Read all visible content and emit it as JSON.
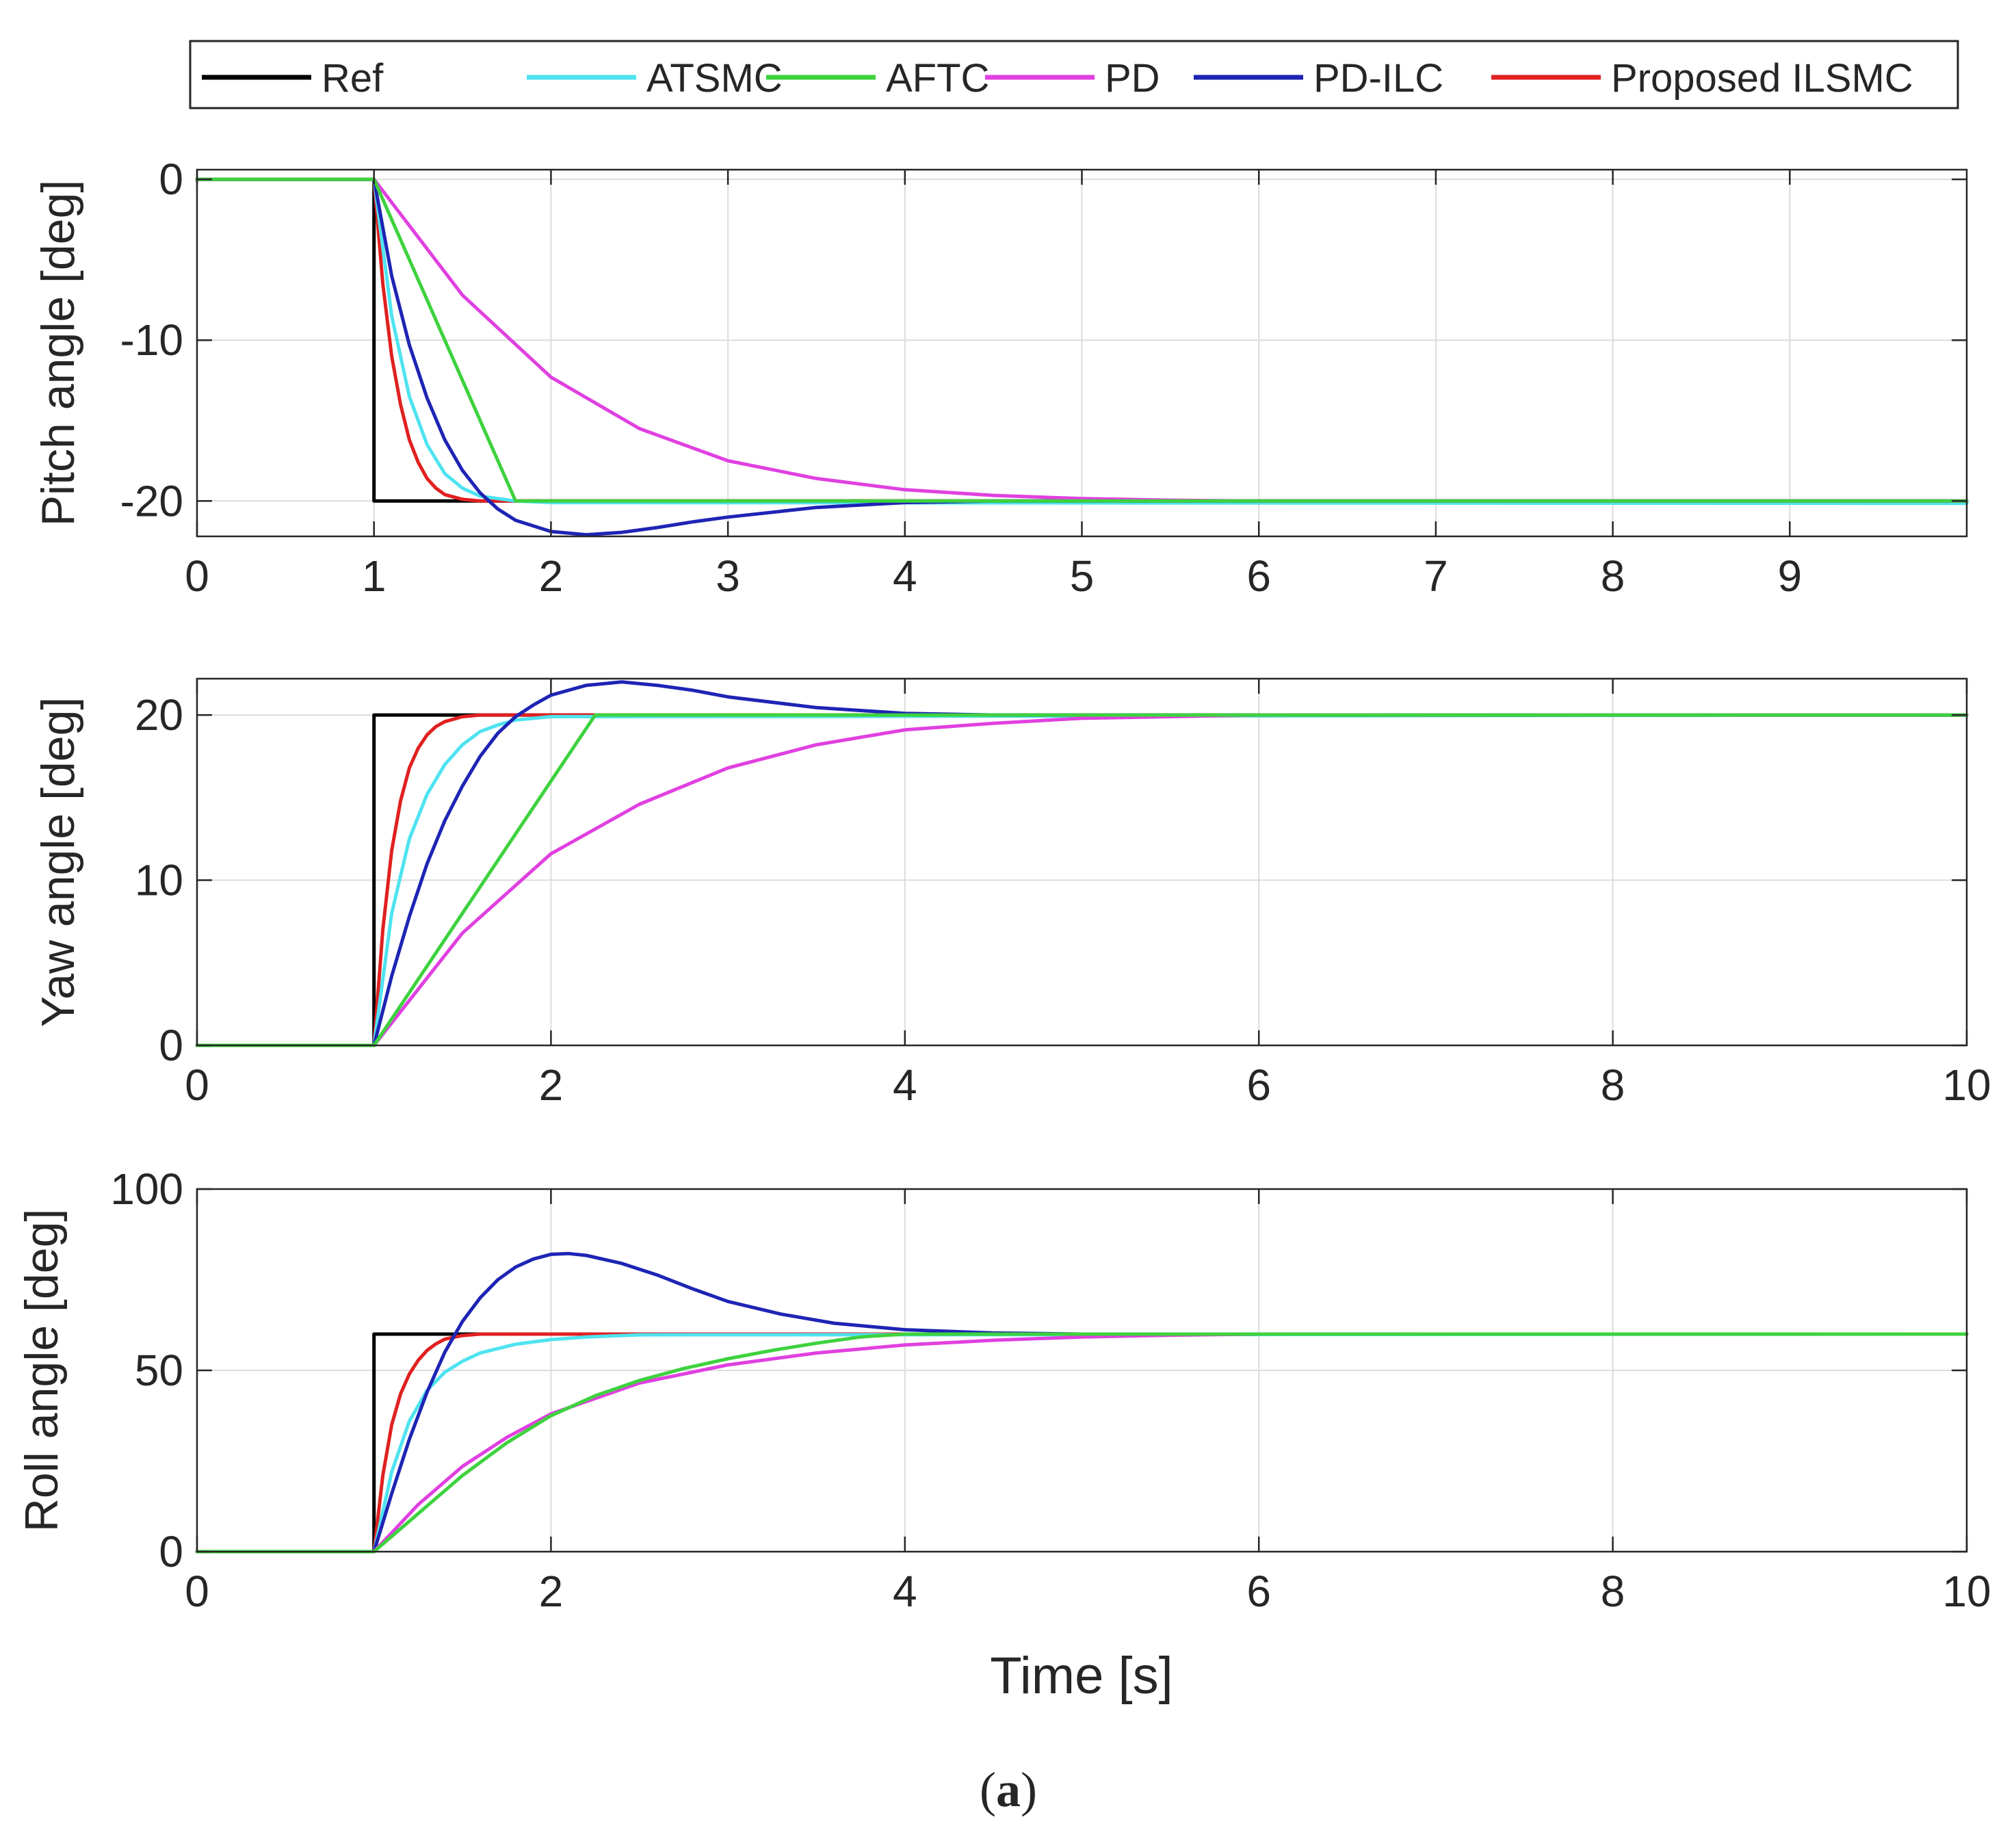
{
  "caption": {
    "open": "(",
    "letter": "a",
    "close": ")"
  },
  "legend": [
    {
      "label": "Ref",
      "color": "#000000"
    },
    {
      "label": "ATSMC",
      "color": "#4fe3f0"
    },
    {
      "label": "AFTC",
      "color": "#3ed23e"
    },
    {
      "label": "PD",
      "color": "#e040e0"
    },
    {
      "label": "PD-ILC",
      "color": "#1e24b4"
    },
    {
      "label": "Proposed ILSMC",
      "color": "#e02020"
    }
  ],
  "chart_data": [
    {
      "type": "line",
      "title": "",
      "xlabel": "",
      "ylabel": "Pitch angle [deg]",
      "xlim": [
        0,
        10
      ],
      "ylim": [
        -22.2,
        0.6
      ],
      "xticks": [
        0,
        1,
        2,
        3,
        4,
        5,
        6,
        7,
        8,
        9
      ],
      "xtick_labels": [
        "0",
        "1",
        "2",
        "3",
        "4",
        "5",
        "6",
        "7",
        "8",
        "9"
      ],
      "yticks": [
        0,
        -10,
        -20
      ],
      "ytick_labels": [
        "0",
        "-10",
        "-20"
      ],
      "grid": true,
      "series": [
        {
          "name": "Ref",
          "x": [
            0,
            1,
            1,
            10
          ],
          "y": [
            0,
            0,
            -20,
            -20
          ]
        },
        {
          "name": "ATSMC",
          "x": [
            0,
            1,
            1.1,
            1.2,
            1.3,
            1.4,
            1.5,
            1.6,
            1.8,
            2.0,
            10
          ],
          "y": [
            0,
            0,
            -8.5,
            -13.5,
            -16.5,
            -18.3,
            -19.2,
            -19.7,
            -20.0,
            -20.1,
            -20.15
          ]
        },
        {
          "name": "AFTC",
          "x": [
            0,
            1,
            1.8,
            10
          ],
          "y": [
            0,
            0,
            -20,
            -20
          ]
        },
        {
          "name": "PD",
          "x": [
            0,
            1,
            1.5,
            2.0,
            2.5,
            3.0,
            3.5,
            4.0,
            4.5,
            5.0,
            5.5,
            6.0,
            10
          ],
          "y": [
            0,
            0,
            -7.2,
            -12.3,
            -15.5,
            -17.5,
            -18.6,
            -19.3,
            -19.65,
            -19.85,
            -19.95,
            -20.0,
            -20.0
          ]
        },
        {
          "name": "PD-ILC",
          "x": [
            0,
            1,
            1.1,
            1.2,
            1.3,
            1.4,
            1.5,
            1.6,
            1.7,
            1.8,
            2.0,
            2.2,
            2.4,
            2.6,
            2.8,
            3.0,
            3.5,
            4.0,
            4.5,
            5.0,
            10
          ],
          "y": [
            0,
            0,
            -6.0,
            -10.3,
            -13.6,
            -16.2,
            -18.1,
            -19.5,
            -20.5,
            -21.2,
            -21.9,
            -22.1,
            -21.95,
            -21.65,
            -21.3,
            -21.0,
            -20.4,
            -20.1,
            -20.0,
            -20.0,
            -20.0
          ]
        },
        {
          "name": "Proposed ILSMC",
          "x": [
            0,
            1,
            1.05,
            1.1,
            1.15,
            1.2,
            1.25,
            1.3,
            1.35,
            1.4,
            1.5,
            1.6,
            10
          ],
          "y": [
            0,
            0,
            -6.5,
            -11.0,
            -14.0,
            -16.2,
            -17.6,
            -18.6,
            -19.2,
            -19.6,
            -19.9,
            -20.0,
            -20.0
          ]
        }
      ]
    },
    {
      "type": "line",
      "title": "",
      "xlabel": "",
      "ylabel": "Yaw angle [deg]",
      "xlim": [
        0,
        10
      ],
      "ylim": [
        0,
        22.2
      ],
      "xticks": [
        0,
        2,
        4,
        6,
        8,
        10
      ],
      "xtick_labels": [
        "0",
        "2",
        "4",
        "6",
        "8",
        "10"
      ],
      "yticks": [
        0,
        10,
        20
      ],
      "ytick_labels": [
        "0",
        "10",
        "20"
      ],
      "grid": true,
      "series": [
        {
          "name": "Ref",
          "x": [
            0,
            1,
            1,
            10
          ],
          "y": [
            0,
            0,
            20,
            20
          ]
        },
        {
          "name": "ATSMC",
          "x": [
            0,
            1,
            1.1,
            1.2,
            1.3,
            1.4,
            1.5,
            1.6,
            1.7,
            1.8,
            2.0,
            10
          ],
          "y": [
            0,
            0,
            8.0,
            12.5,
            15.2,
            17.0,
            18.2,
            19.0,
            19.4,
            19.7,
            19.9,
            20.0
          ]
        },
        {
          "name": "AFTC",
          "x": [
            0,
            1,
            2.25,
            10
          ],
          "y": [
            0,
            0,
            20,
            20
          ]
        },
        {
          "name": "PD",
          "x": [
            0,
            1,
            1.5,
            2.0,
            2.5,
            3.0,
            3.5,
            4.0,
            4.5,
            5.0,
            5.5,
            6.0,
            10
          ],
          "y": [
            0,
            0,
            6.8,
            11.6,
            14.6,
            16.8,
            18.2,
            19.1,
            19.5,
            19.8,
            19.9,
            20.0,
            20.0
          ]
        },
        {
          "name": "PD-ILC",
          "x": [
            0,
            1,
            1.1,
            1.2,
            1.3,
            1.4,
            1.5,
            1.6,
            1.7,
            1.8,
            1.9,
            2.0,
            2.2,
            2.4,
            2.6,
            2.8,
            3.0,
            3.5,
            4.0,
            4.5,
            5.0,
            10
          ],
          "y": [
            0,
            0,
            4.2,
            7.8,
            11.0,
            13.6,
            15.7,
            17.5,
            18.9,
            19.9,
            20.6,
            21.2,
            21.8,
            22.0,
            21.8,
            21.5,
            21.1,
            20.45,
            20.1,
            20.0,
            20.0,
            20.0
          ]
        },
        {
          "name": "Proposed ILSMC",
          "x": [
            0,
            1,
            1.05,
            1.1,
            1.15,
            1.2,
            1.25,
            1.3,
            1.35,
            1.4,
            1.5,
            1.6,
            10
          ],
          "y": [
            0,
            0,
            7.0,
            11.8,
            14.8,
            16.8,
            18.0,
            18.8,
            19.3,
            19.6,
            19.9,
            20.0,
            20.0
          ]
        }
      ]
    },
    {
      "type": "line",
      "title": "",
      "xlabel": "Time [s]",
      "ylabel": "Roll angle [deg]",
      "xlim": [
        0,
        10
      ],
      "ylim": [
        0,
        100
      ],
      "xticks": [
        0,
        2,
        4,
        6,
        8,
        10
      ],
      "xtick_labels": [
        "0",
        "2",
        "4",
        "6",
        "8",
        "10"
      ],
      "yticks": [
        0,
        50,
        100
      ],
      "ytick_labels": [
        "0",
        "50",
        "100"
      ],
      "grid": true,
      "series": [
        {
          "name": "Ref",
          "x": [
            0,
            1,
            1,
            10
          ],
          "y": [
            0,
            0,
            60,
            60
          ]
        },
        {
          "name": "ATSMC",
          "x": [
            0,
            1,
            1.1,
            1.2,
            1.3,
            1.4,
            1.5,
            1.6,
            1.8,
            2.0,
            2.2,
            2.5,
            10
          ],
          "y": [
            0,
            0,
            22,
            36,
            44.5,
            49.5,
            52.5,
            54.8,
            57.2,
            58.5,
            59.2,
            59.8,
            60
          ]
        },
        {
          "name": "AFTC",
          "x": [
            0,
            1,
            1.25,
            1.5,
            1.75,
            2.0,
            2.25,
            2.5,
            2.75,
            3.0,
            3.25,
            3.5,
            3.75,
            4.0,
            10
          ],
          "y": [
            0,
            0,
            10.5,
            21,
            30,
            37.5,
            43,
            47.2,
            50.5,
            53.2,
            55.5,
            57.5,
            59.2,
            60,
            60
          ]
        },
        {
          "name": "PD",
          "x": [
            0,
            1,
            1.25,
            1.5,
            1.75,
            2.0,
            2.5,
            3.0,
            3.5,
            4.0,
            4.5,
            5.0,
            5.5,
            6.0,
            10
          ],
          "y": [
            0,
            0,
            13,
            23.5,
            31.5,
            38,
            46.5,
            51.5,
            54.8,
            57,
            58.3,
            59.2,
            59.7,
            60,
            60
          ]
        },
        {
          "name": "PD-ILC",
          "x": [
            0,
            1,
            1.1,
            1.2,
            1.3,
            1.4,
            1.5,
            1.6,
            1.7,
            1.8,
            1.9,
            2.0,
            2.1,
            2.2,
            2.4,
            2.6,
            2.8,
            3.0,
            3.3,
            3.6,
            4.0,
            4.5,
            5.0,
            10
          ],
          "y": [
            0,
            0,
            16,
            31,
            44,
            55,
            63.5,
            70,
            75,
            78.5,
            80.7,
            82,
            82.2,
            81.7,
            79.5,
            76.3,
            72.5,
            69,
            65.5,
            63,
            61.2,
            60.3,
            60,
            60
          ]
        },
        {
          "name": "Proposed ILSMC",
          "x": [
            0,
            1,
            1.05,
            1.1,
            1.15,
            1.2,
            1.25,
            1.3,
            1.35,
            1.4,
            1.5,
            1.6,
            10
          ],
          "y": [
            0,
            0,
            21,
            35,
            43.5,
            49,
            52.8,
            55.5,
            57.3,
            58.6,
            59.6,
            60,
            60
          ]
        }
      ]
    }
  ]
}
